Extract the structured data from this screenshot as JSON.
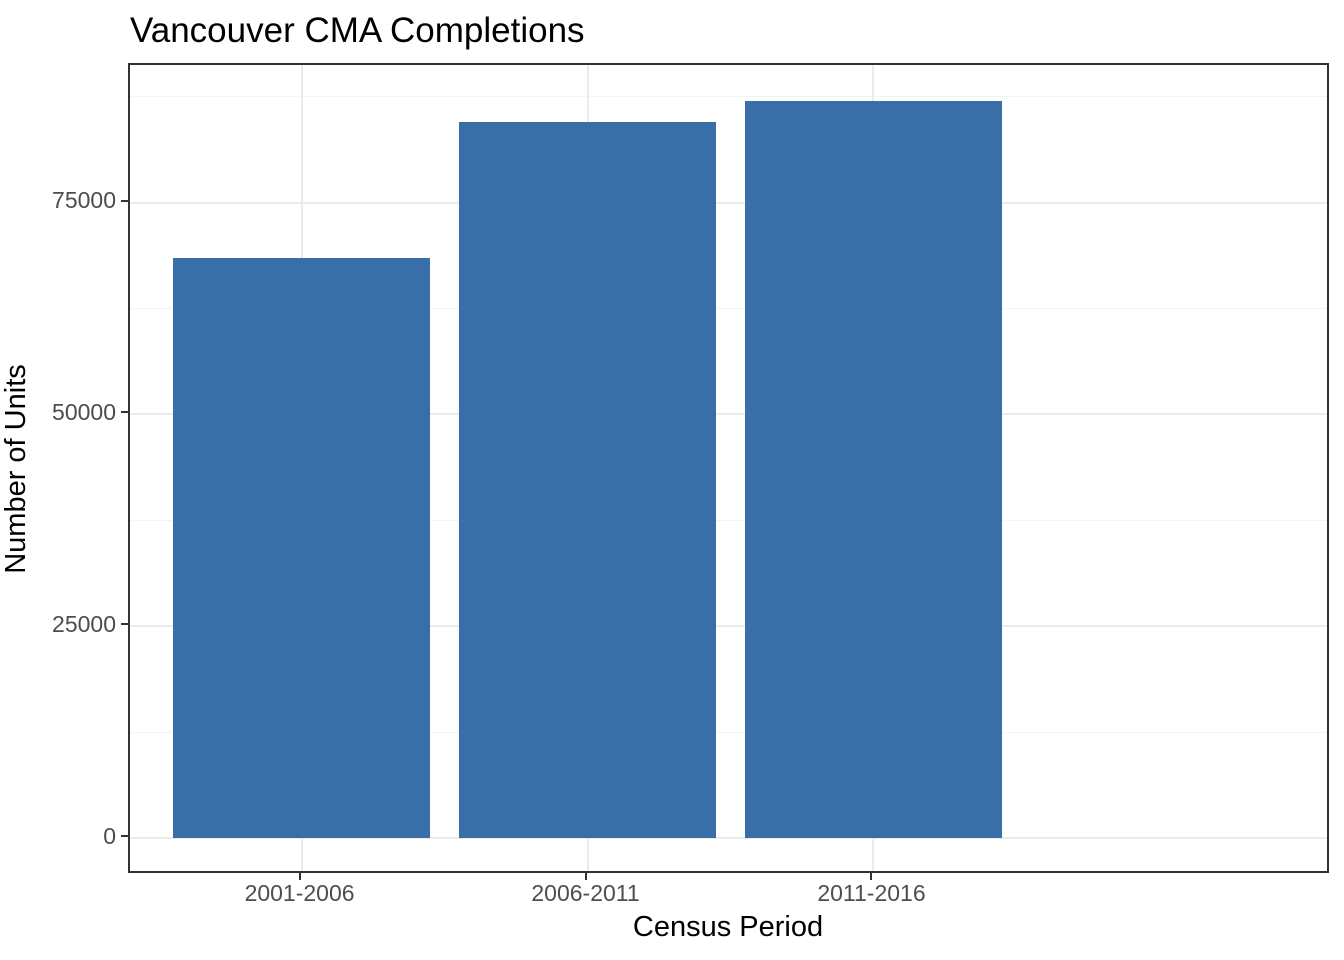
{
  "chart_data": {
    "type": "bar",
    "title": "Vancouver CMA Completions",
    "xlabel": "Census Period",
    "ylabel": "Number of Units",
    "categories": [
      "2001-2006",
      "2006-2011",
      "2011-2016"
    ],
    "values": [
      68500,
      84500,
      87000
    ],
    "y_ticks": [
      0,
      25000,
      50000,
      75000
    ],
    "y_tick_labels": [
      "0",
      "25000",
      "50000",
      "75000"
    ],
    "y_minor_ticks": [
      12500,
      37500,
      62500,
      87500
    ],
    "ylim": [
      -4360,
      91240
    ],
    "bar_width_fraction": 0.9,
    "category_expand": 0.6,
    "grid": "major-and-minor-horizontal, major-vertical",
    "legend": "none",
    "colors": {
      "bar_fill": "#3A6EA8",
      "grid_major": "#EBEBEB",
      "grid_minor": "#F4F4F4",
      "panel_border": "#333333",
      "tick_mark": "#333333",
      "tick_label": "#4D4D4D",
      "axis_title": "#000000",
      "title": "#000000",
      "background": "#FFFFFF"
    }
  }
}
